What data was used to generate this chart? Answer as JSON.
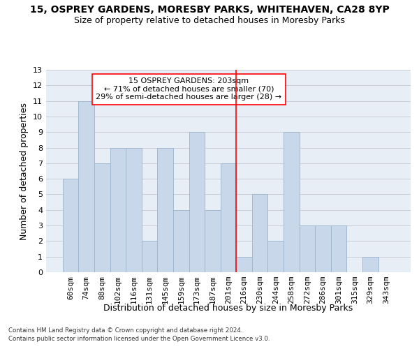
{
  "title1": "15, OSPREY GARDENS, MORESBY PARKS, WHITEHAVEN, CA28 8YP",
  "title2": "Size of property relative to detached houses in Moresby Parks",
  "xlabel": "Distribution of detached houses by size in Moresby Parks",
  "ylabel": "Number of detached properties",
  "footer1": "Contains HM Land Registry data © Crown copyright and database right 2024.",
  "footer2": "Contains public sector information licensed under the Open Government Licence v3.0.",
  "bin_labels": [
    "60sqm",
    "74sqm",
    "88sqm",
    "102sqm",
    "116sqm",
    "131sqm",
    "145sqm",
    "159sqm",
    "173sqm",
    "187sqm",
    "201sqm",
    "216sqm",
    "230sqm",
    "244sqm",
    "258sqm",
    "272sqm",
    "286sqm",
    "301sqm",
    "315sqm",
    "329sqm",
    "343sqm"
  ],
  "bar_values": [
    6,
    11,
    7,
    8,
    8,
    2,
    8,
    4,
    9,
    4,
    7,
    1,
    5,
    2,
    9,
    3,
    3,
    3,
    0,
    1,
    0
  ],
  "bar_color": "#c8d8ea",
  "bar_edgecolor": "#9ab4cc",
  "vline_x_index": 10.5,
  "vline_color": "red",
  "annotation_text": "15 OSPREY GARDENS: 203sqm\n← 71% of detached houses are smaller (70)\n29% of semi-detached houses are larger (28) →",
  "ylim": [
    0,
    13
  ],
  "yticks": [
    0,
    1,
    2,
    3,
    4,
    5,
    6,
    7,
    8,
    9,
    10,
    11,
    12,
    13
  ],
  "grid_color": "#c8ccd8",
  "background_color": "#e8eef6",
  "title1_fontsize": 10,
  "title2_fontsize": 9,
  "xlabel_fontsize": 9,
  "ylabel_fontsize": 9,
  "tick_labelsize": 8,
  "annotation_fontsize": 8
}
